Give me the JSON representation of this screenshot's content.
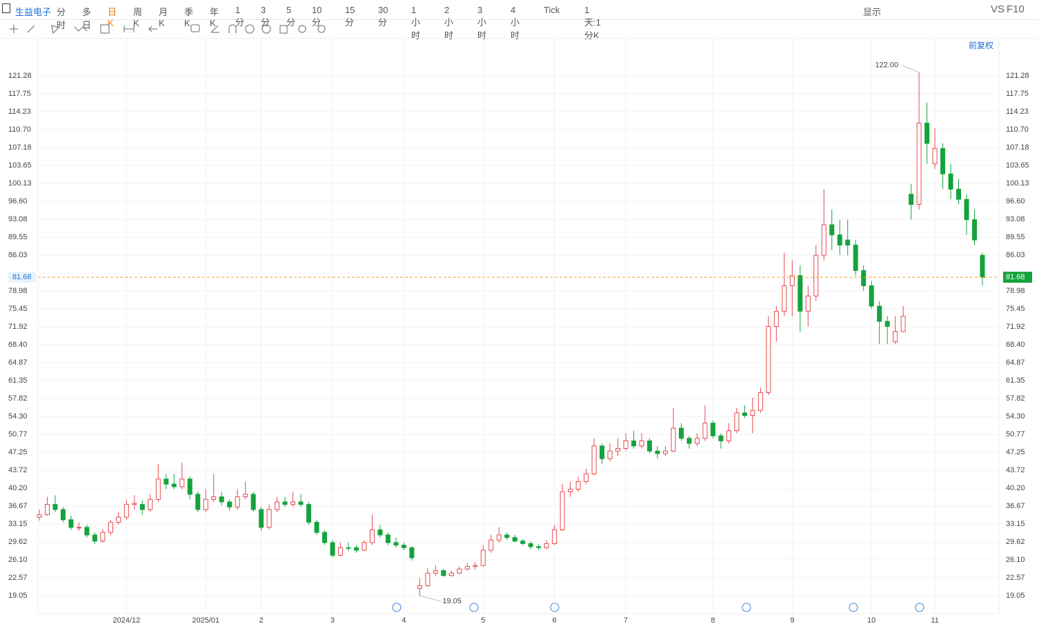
{
  "toolbar": {
    "symbol": "生益电子",
    "periods": [
      "分时",
      "多日",
      "日K",
      "周K",
      "月K",
      "季K",
      "年K",
      "1分",
      "3分",
      "5分",
      "10分",
      "15分",
      "30分",
      "1小时",
      "2小时",
      "3小时",
      "4小时",
      "Tick",
      "1天:1分K"
    ],
    "active": "日K",
    "display": "显示",
    "vs": "VS",
    "f10": "F10",
    "adjust": "前复权"
  },
  "chart_data": {
    "type": "candlestick",
    "up_color": "#e5484d",
    "down_color": "#14a33c",
    "grid": true,
    "ylim": [
      15.53,
      125.35
    ],
    "yticks": [
      19.05,
      22.57,
      {
        "value": 26.1,
        "label": "26.10"
      },
      29.62,
      33.15,
      36.67,
      {
        "value": 40.2,
        "label": "40.20"
      },
      43.72,
      47.25,
      50.77,
      {
        "value": 54.3,
        "label": "54.30"
      },
      57.82,
      61.35,
      64.87,
      {
        "value": 68.4,
        "label": "68.40"
      },
      71.92,
      75.45,
      78.98,
      86.03,
      89.55,
      93.08,
      {
        "value": 96.6,
        "label": "96.60"
      },
      100.13,
      103.65,
      107.18,
      {
        "value": 110.7,
        "label": "110.70"
      },
      114.23,
      117.75,
      121.28
    ],
    "categories": [
      null,
      null,
      null,
      null,
      null,
      null,
      null,
      null,
      null,
      null,
      null,
      "2024/12",
      null,
      null,
      null,
      null,
      null,
      null,
      null,
      null,
      null,
      "2025/01",
      null,
      null,
      null,
      null,
      null,
      null,
      "2",
      null,
      null,
      null,
      null,
      null,
      null,
      null,
      null,
      "3",
      null,
      null,
      null,
      null,
      null,
      null,
      null,
      null,
      "4",
      null,
      null,
      null,
      null,
      null,
      null,
      null,
      null,
      null,
      "5",
      null,
      null,
      null,
      null,
      null,
      null,
      null,
      null,
      "6",
      null,
      null,
      null,
      null,
      null,
      null,
      null,
      null,
      "7",
      null,
      null,
      null,
      null,
      null,
      null,
      null,
      null,
      null,
      null,
      "8",
      null,
      null,
      null,
      null,
      null,
      null,
      null,
      null,
      null,
      "9",
      null,
      null,
      null,
      null,
      null,
      null,
      null,
      null,
      null,
      "10",
      null,
      null,
      null,
      null,
      null,
      null,
      null,
      "11",
      null,
      null,
      null,
      null,
      null,
      null
    ],
    "ohlc": [
      [
        34.5,
        36,
        33.8,
        35
      ],
      [
        35,
        38.5,
        34.8,
        37
      ],
      [
        37,
        38.8,
        35.5,
        36
      ],
      [
        36,
        36.5,
        33.5,
        34
      ],
      [
        34,
        34.8,
        32,
        32.5
      ],
      [
        32.5,
        33.5,
        31.8,
        32.5
      ],
      [
        32.5,
        33,
        30.5,
        31
      ],
      [
        31,
        31.5,
        29.2,
        29.8
      ],
      [
        29.8,
        32.2,
        29.5,
        31.5
      ],
      [
        31.5,
        34,
        31,
        33.5
      ],
      [
        33.5,
        35.5,
        33,
        34.5
      ],
      [
        34.5,
        38,
        34,
        37
      ],
      [
        37,
        38.8,
        36,
        37.2
      ],
      [
        37,
        37.8,
        35,
        36
      ],
      [
        36,
        39,
        35.5,
        38
      ],
      [
        38,
        45,
        37.5,
        42
      ],
      [
        42,
        43,
        40,
        41
      ],
      [
        41,
        43,
        40,
        40.5
      ],
      [
        40.5,
        45.2,
        40,
        42
      ],
      [
        42,
        42.5,
        38,
        39
      ],
      [
        39,
        39.5,
        35.5,
        36
      ],
      [
        36,
        40,
        35.5,
        38
      ],
      [
        38,
        43,
        37.5,
        38.5
      ],
      [
        38.5,
        39.5,
        36.8,
        37.5
      ],
      [
        37.5,
        38,
        35.8,
        36.5
      ],
      [
        36.5,
        40,
        36,
        38.5
      ],
      [
        38.5,
        41.5,
        38,
        39
      ],
      [
        39,
        39.5,
        35.5,
        36
      ],
      [
        36,
        36.5,
        31.8,
        32.5
      ],
      [
        32.5,
        37,
        32,
        36
      ],
      [
        36,
        38.5,
        35.5,
        37.5
      ],
      [
        37.5,
        38.5,
        36.5,
        37
      ],
      [
        37,
        39.5,
        36.5,
        37.5
      ],
      [
        37.5,
        39,
        36.5,
        37
      ],
      [
        37,
        37.5,
        33,
        33.5
      ],
      [
        33.5,
        34,
        31,
        31.5
      ],
      [
        31.5,
        32,
        29,
        29.5
      ],
      [
        29.5,
        30,
        26.5,
        27
      ],
      [
        27,
        29.5,
        26.8,
        28.5
      ],
      [
        28.5,
        29.5,
        27.8,
        28.4
      ],
      [
        28.5,
        29,
        27.5,
        28
      ],
      [
        28,
        30,
        27.8,
        29.5
      ],
      [
        29.5,
        35,
        29,
        32
      ],
      [
        32,
        33,
        30.5,
        31
      ],
      [
        31,
        31.5,
        29,
        29.5
      ],
      [
        29.5,
        30.5,
        28.5,
        29
      ],
      [
        29,
        29.5,
        28,
        28.5
      ],
      [
        28.5,
        28.8,
        26,
        26.5
      ],
      [
        20.5,
        22.5,
        19.05,
        21
      ],
      [
        21,
        24.5,
        20.8,
        23.5
      ],
      [
        23.5,
        25,
        23,
        24
      ],
      [
        24,
        24.3,
        22.8,
        23
      ],
      [
        23,
        24,
        22.8,
        23.5
      ],
      [
        23.5,
        24.8,
        23.3,
        24.3
      ],
      [
        24.3,
        25.5,
        24,
        24.8
      ],
      [
        24.8,
        25.6,
        24.2,
        25
      ],
      [
        25,
        29,
        24.8,
        28
      ],
      [
        28,
        31,
        27.5,
        30
      ],
      [
        30,
        32.5,
        29.5,
        31
      ],
      [
        31,
        31.5,
        30,
        30.5
      ],
      [
        30.5,
        31,
        29.5,
        29.8
      ],
      [
        29.8,
        30.2,
        29,
        29.3
      ],
      [
        29.3,
        29.8,
        28.2,
        28.7
      ],
      [
        28.7,
        29.2,
        28,
        28.5
      ],
      [
        28.5,
        30,
        28.2,
        29.3
      ],
      [
        29.3,
        33,
        29,
        32
      ],
      [
        32,
        41,
        31.8,
        39.5
      ],
      [
        39.5,
        41.5,
        38.5,
        40
      ],
      [
        40,
        42.5,
        39.5,
        41.5
      ],
      [
        41.5,
        44,
        41,
        43
      ],
      [
        43,
        50,
        42.8,
        48.5
      ],
      [
        48.5,
        49,
        45,
        46
      ],
      [
        46,
        49,
        45.5,
        47.5
      ],
      [
        47.5,
        50,
        46.5,
        48
      ],
      [
        48,
        51,
        47.5,
        49.5
      ],
      [
        49.5,
        51.5,
        48,
        48.5
      ],
      [
        48.5,
        51,
        48,
        49.5
      ],
      [
        49.5,
        50,
        47,
        47.5
      ],
      [
        47.5,
        48.5,
        46,
        47
      ],
      [
        47,
        48.5,
        46.5,
        47.5
      ],
      [
        47.5,
        56,
        47.3,
        52
      ],
      [
        52,
        53,
        49.5,
        50
      ],
      [
        50,
        50.5,
        48,
        49
      ],
      [
        49,
        51,
        48.5,
        50
      ],
      [
        50,
        56.5,
        49.5,
        53
      ],
      [
        53,
        53.5,
        50,
        50.5
      ],
      [
        50.5,
        51,
        48,
        49.5
      ],
      [
        49.5,
        53,
        49,
        51.5
      ],
      [
        51.5,
        56,
        51,
        55
      ],
      [
        55,
        56.5,
        54,
        54.5
      ],
      [
        54.5,
        58,
        51,
        55.5
      ],
      [
        55.5,
        60,
        55,
        59
      ],
      [
        59,
        74,
        58.5,
        72
      ],
      [
        72,
        76,
        69,
        75
      ],
      [
        75,
        86.5,
        74,
        80
      ],
      [
        80,
        85,
        74,
        82
      ],
      [
        82,
        84,
        71,
        75
      ],
      [
        75,
        80,
        72,
        78
      ],
      [
        78,
        88,
        77,
        86
      ],
      [
        86,
        99,
        85,
        92
      ],
      [
        92,
        95,
        87,
        90
      ],
      [
        90,
        93,
        86,
        88
      ],
      [
        89,
        93,
        86,
        88
      ],
      [
        88,
        89,
        82,
        83
      ],
      [
        83,
        84,
        79,
        80
      ],
      [
        80,
        81,
        75.5,
        76
      ],
      [
        76,
        77,
        68.5,
        73
      ],
      [
        73,
        74,
        68.5,
        72
      ],
      [
        69,
        74,
        68.5,
        71
      ],
      [
        71,
        76,
        71,
        74
      ],
      [
        98,
        100,
        93,
        96
      ],
      [
        96,
        122,
        95,
        112
      ],
      [
        112,
        116,
        104,
        108
      ],
      [
        104,
        111,
        103,
        107
      ],
      [
        107,
        108,
        99,
        102
      ],
      [
        102,
        104,
        97,
        99
      ],
      [
        99,
        101,
        96,
        97
      ],
      [
        97,
        98,
        90,
        93
      ],
      [
        93,
        95,
        88,
        89
      ],
      [
        86,
        86.5,
        80,
        81.68
      ]
    ],
    "high_label": "122.00",
    "low_label": "19.05"
  }
}
